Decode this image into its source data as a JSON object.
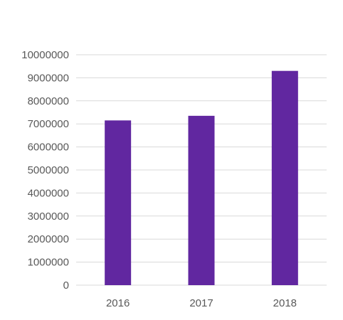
{
  "chart_data": {
    "type": "bar",
    "title": "",
    "xlabel": "",
    "ylabel": "",
    "categories": [
      "2016",
      "2017",
      "2018"
    ],
    "values": [
      7150000,
      7350000,
      9300000
    ],
    "ylim": [
      0,
      10000000
    ],
    "yticks": [
      "0",
      "1000000",
      "2000000",
      "3000000",
      "4000000",
      "5000000",
      "6000000",
      "7000000",
      "8000000",
      "9000000",
      "10000000"
    ],
    "ytick_values": [
      0,
      1000000,
      2000000,
      3000000,
      4000000,
      5000000,
      6000000,
      7000000,
      8000000,
      9000000,
      10000000
    ],
    "grid": true,
    "legend": "none",
    "bar_color": "#6127A0"
  }
}
